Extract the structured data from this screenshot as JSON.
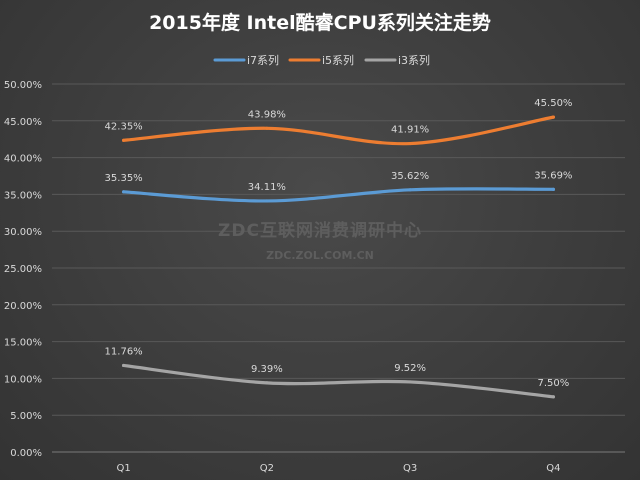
{
  "chart_data": {
    "type": "line",
    "title": "2015年度 Intel酷睿CPU系列关注走势",
    "categories": [
      "Q1",
      "Q2",
      "Q3",
      "Q4"
    ],
    "series": [
      {
        "name": "i7系列",
        "color": "#5b9bd5",
        "values": [
          35.35,
          34.11,
          35.62,
          35.69
        ],
        "labels": [
          "35.35%",
          "34.11%",
          "35.62%",
          "35.69%"
        ]
      },
      {
        "name": "i5系列",
        "color": "#ed7d31",
        "values": [
          42.35,
          43.98,
          41.91,
          45.5
        ],
        "labels": [
          "42.35%",
          "43.98%",
          "41.91%",
          "45.50%"
        ]
      },
      {
        "name": "i3系列",
        "color": "#a5a5a5",
        "values": [
          11.76,
          9.39,
          9.52,
          7.5
        ],
        "labels": [
          "11.76%",
          "9.39%",
          "9.52%",
          "7.50%"
        ]
      }
    ],
    "ylim": [
      0,
      50
    ],
    "yticks": [
      "0.00%",
      "5.00%",
      "10.00%",
      "15.00%",
      "20.00%",
      "25.00%",
      "30.00%",
      "35.00%",
      "40.00%",
      "45.00%",
      "50.00%"
    ],
    "legend_position": "top-center",
    "grid": true
  },
  "watermark": {
    "line1": "ZDC互联网消费调研中心",
    "line2": "ZDC.ZOL.COM.CN"
  }
}
